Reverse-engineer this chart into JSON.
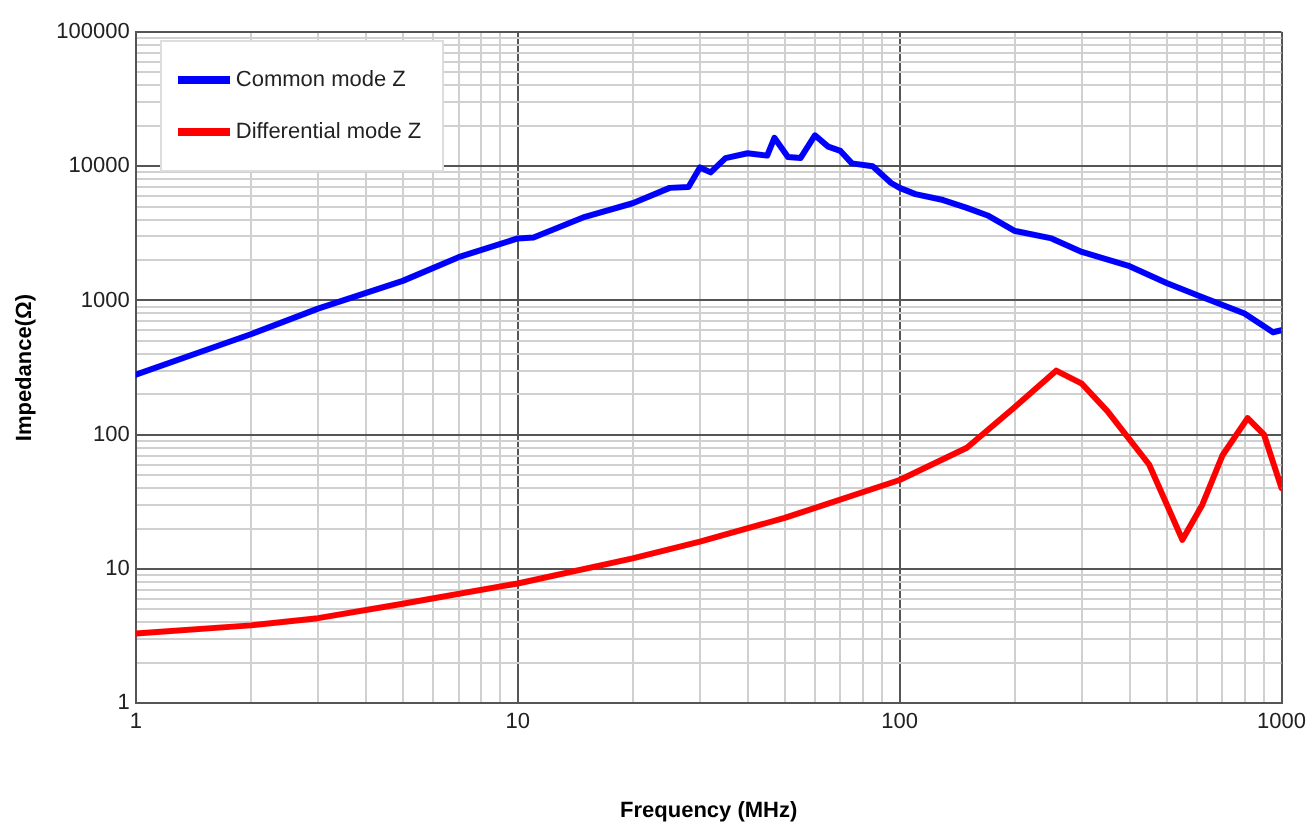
{
  "chart_data": {
    "type": "line",
    "xlabel": "Frequency (MHz)",
    "ylabel": "Impedance(Ω)",
    "log": "xy",
    "legend": "top left",
    "grid": true,
    "marker": "none",
    "line_style": "solid",
    "xlim": [
      1,
      1000
    ],
    "ylim": [
      1,
      100000
    ],
    "xticks": [
      1,
      {
        "value": 2,
        "label": null
      },
      {
        "value": 3,
        "label": null
      },
      {
        "value": 4,
        "label": null
      },
      {
        "value": 5,
        "label": null
      },
      {
        "value": 6,
        "label": null
      },
      {
        "value": 7,
        "label": null
      },
      {
        "value": 8,
        "label": null
      },
      {
        "value": 9,
        "label": null
      },
      10,
      {
        "value": 20,
        "label": null
      },
      {
        "value": 30,
        "label": null
      },
      {
        "value": 40,
        "label": null
      },
      {
        "value": 50,
        "label": null
      },
      {
        "value": 60,
        "label": null
      },
      {
        "value": 70,
        "label": null
      },
      {
        "value": 80,
        "label": null
      },
      {
        "value": 90,
        "label": null
      },
      100,
      {
        "value": 200,
        "label": null
      },
      {
        "value": 300,
        "label": null
      },
      {
        "value": 400,
        "label": null
      },
      {
        "value": 500,
        "label": null
      },
      {
        "value": 600,
        "label": null
      },
      {
        "value": 700,
        "label": null
      },
      {
        "value": 800,
        "label": null
      },
      {
        "value": 900,
        "label": null
      },
      1000
    ],
    "yticks": [
      1,
      {
        "value": 2,
        "label": null
      },
      {
        "value": 3,
        "label": null
      },
      {
        "value": 4,
        "label": null
      },
      {
        "value": 5,
        "label": null
      },
      {
        "value": 6,
        "label": null
      },
      {
        "value": 7,
        "label": null
      },
      {
        "value": 8,
        "label": null
      },
      {
        "value": 9,
        "label": null
      },
      10,
      {
        "value": 20,
        "label": null
      },
      {
        "value": 30,
        "label": null
      },
      {
        "value": 40,
        "label": null
      },
      {
        "value": 50,
        "label": null
      },
      {
        "value": 60,
        "label": null
      },
      {
        "value": 70,
        "label": null
      },
      {
        "value": 80,
        "label": null
      },
      {
        "value": 90,
        "label": null
      },
      100,
      {
        "value": 200,
        "label": null
      },
      {
        "value": 300,
        "label": null
      },
      {
        "value": 400,
        "label": null
      },
      {
        "value": 500,
        "label": null
      },
      {
        "value": 600,
        "label": null
      },
      {
        "value": 700,
        "label": null
      },
      {
        "value": 800,
        "label": null
      },
      {
        "value": 900,
        "label": null
      },
      1000,
      {
        "value": 2000,
        "label": null
      },
      {
        "value": 3000,
        "label": null
      },
      {
        "value": 4000,
        "label": null
      },
      {
        "value": 5000,
        "label": null
      },
      {
        "value": 6000,
        "label": null
      },
      {
        "value": 7000,
        "label": null
      },
      {
        "value": 8000,
        "label": null
      },
      {
        "value": 9000,
        "label": null
      },
      10000,
      {
        "value": 20000,
        "label": null
      },
      {
        "value": 30000,
        "label": null
      },
      {
        "value": 40000,
        "label": null
      },
      {
        "value": 50000,
        "label": null
      },
      {
        "value": 60000,
        "label": null
      },
      {
        "value": 70000,
        "label": null
      },
      {
        "value": 80000,
        "label": null
      },
      {
        "value": 90000,
        "label": null
      },
      100000
    ],
    "series": [
      {
        "name": "Common mode Z",
        "color": "#0000ff",
        "x": [
          1,
          2,
          3,
          5,
          7,
          10,
          11,
          15,
          20,
          25,
          28,
          30,
          32,
          35,
          40,
          45,
          47,
          51,
          55,
          60,
          65,
          70,
          75,
          85,
          95,
          100,
          110,
          130,
          150,
          170,
          200,
          250,
          300,
          400,
          500,
          600,
          800,
          950,
          1000
        ],
        "values": [
          280,
          560,
          870,
          1400,
          2100,
          2900,
          2950,
          4200,
          5300,
          6900,
          7000,
          9800,
          9000,
          11500,
          12500,
          12000,
          16300,
          11700,
          11500,
          17000,
          14000,
          13000,
          10500,
          10000,
          7500,
          6900,
          6200,
          5600,
          4900,
          4300,
          3300,
          2900,
          2300,
          1800,
          1350,
          1100,
          800,
          580,
          600
        ]
      },
      {
        "name": "Differential mode Z",
        "color": "#ff0000",
        "x": [
          1,
          2,
          3,
          5,
          10,
          20,
          30,
          50,
          100,
          150,
          200,
          257,
          300,
          350,
          450,
          550,
          620,
          700,
          815,
          900,
          1000
        ],
        "values": [
          3.3,
          3.8,
          4.3,
          5.5,
          7.8,
          12,
          16,
          24,
          46,
          80,
          160,
          300,
          240,
          150,
          60,
          16.5,
          30,
          70,
          133,
          100,
          40
        ]
      }
    ]
  }
}
